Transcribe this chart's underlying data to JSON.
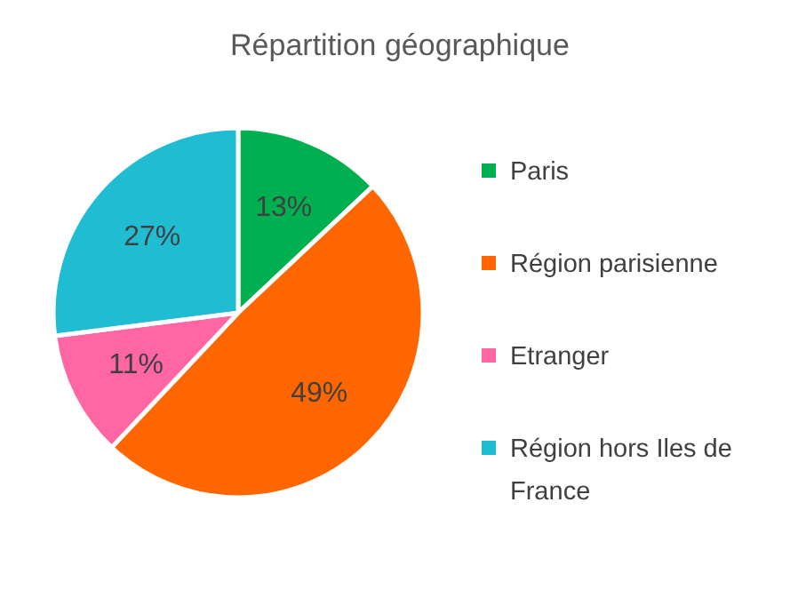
{
  "chart_data": {
    "type": "pie",
    "title": "Répartition géographique",
    "categories": [
      "Paris",
      "Région parisienne",
      "Etranger",
      "Région hors Iles de France"
    ],
    "values": [
      13,
      49,
      11,
      27
    ],
    "colors": [
      "#00b050",
      "#ff6600",
      "#ff66a3",
      "#1fbcd2"
    ],
    "value_labels": [
      "13%",
      "49%",
      "11%",
      "27%"
    ],
    "legend": "right"
  }
}
